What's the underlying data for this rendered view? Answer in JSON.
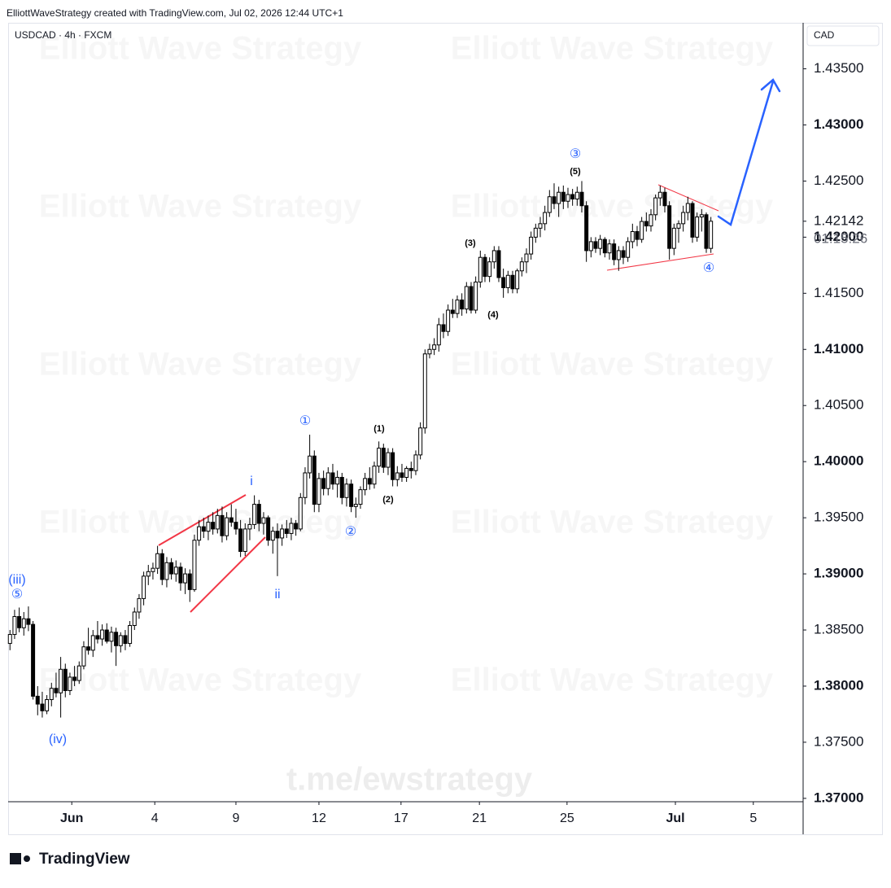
{
  "header": "ElliottWaveStrategy created with TradingView.com, Jul 02, 2026 12:44 UTC+1",
  "symbol": "USDCAD · 4h · FXCM",
  "currency": "CAD",
  "watermark": "Elliott Wave Strategy",
  "link": "t.me/ewstrategy",
  "brand": "TradingView",
  "chart_data": {
    "type": "candlestick",
    "up_color": "#ffffff",
    "down_color": "#000000",
    "wick_color": "#000000",
    "xlim": [
      -0.4,
      172
    ],
    "ylim": [
      1.3697,
      1.4391
    ],
    "xticks": [
      {
        "value": 13.4,
        "label": "Jun"
      },
      {
        "value": 31.4,
        "label": "4"
      },
      {
        "value": 49,
        "label": "9"
      },
      {
        "value": 67,
        "label": "12"
      },
      {
        "value": 84.8,
        "label": "17"
      },
      {
        "value": 101.8,
        "label": "21"
      },
      {
        "value": 120.8,
        "label": "25"
      },
      {
        "value": 144.3,
        "label": "Jul"
      },
      {
        "value": 161.2,
        "label": "5"
      }
    ],
    "yticks": [
      {
        "value": 1.37,
        "label": "1.37000"
      },
      {
        "value": 1.375,
        "label": "1.37500"
      },
      {
        "value": 1.38,
        "label": "1.38000"
      },
      {
        "value": 1.385,
        "label": "1.38500"
      },
      {
        "value": 1.39,
        "label": "1.39000"
      },
      {
        "value": 1.395,
        "label": "1.39500"
      },
      {
        "value": 1.4,
        "label": "1.40000"
      },
      {
        "value": 1.405,
        "label": "1.40500"
      },
      {
        "value": 1.41,
        "label": "1.41000"
      },
      {
        "value": 1.415,
        "label": "1.41500"
      },
      {
        "value": 1.42,
        "label": "1.42000"
      },
      {
        "value": 1.425,
        "label": "1.42500"
      },
      {
        "value": 1.43,
        "label": "1.43000"
      },
      {
        "value": 1.435,
        "label": "1.43500"
      }
    ],
    "last_price": 1.42142,
    "countdown": "01:15:26",
    "annotations": [
      {
        "text": "(iii)",
        "color": "#2962ff"
      },
      {
        "text": "⑤",
        "color": "#2962ff"
      },
      {
        "text": "(iv)",
        "color": "#2962ff"
      },
      {
        "text": "i",
        "color": "#2962ff"
      },
      {
        "text": "ii",
        "color": "#2962ff"
      },
      {
        "text": "①",
        "color": "#2962ff"
      },
      {
        "text": "②",
        "color": "#2962ff"
      },
      {
        "text": "(1)",
        "color": "#000000"
      },
      {
        "text": "(2)",
        "color": "#000000"
      },
      {
        "text": "(3)",
        "color": "#000000"
      },
      {
        "text": "(4)",
        "color": "#000000"
      },
      {
        "text": "③",
        "color": "#2962ff"
      },
      {
        "text": "(5)",
        "color": "#000000"
      },
      {
        "text": "④",
        "color": "#2962ff"
      }
    ],
    "candles": [
      [
        1.3838,
        1.385,
        1.3832,
        1.3846
      ],
      [
        1.3846,
        1.3868,
        1.3842,
        1.3862
      ],
      [
        1.3862,
        1.387,
        1.3848,
        1.3852
      ],
      [
        1.3852,
        1.3866,
        1.3845,
        1.386
      ],
      [
        1.386,
        1.3871,
        1.3849,
        1.3855
      ],
      [
        1.3855,
        1.3858,
        1.3788,
        1.3791
      ],
      [
        1.3791,
        1.38,
        1.3774,
        1.3784
      ],
      [
        1.3784,
        1.3795,
        1.3772,
        1.3778
      ],
      [
        1.3778,
        1.3792,
        1.3775,
        1.3788
      ],
      [
        1.3788,
        1.3803,
        1.3782,
        1.3798
      ],
      [
        1.3798,
        1.3812,
        1.379,
        1.3794
      ],
      [
        1.3794,
        1.3826,
        1.3772,
        1.3815
      ],
      [
        1.3815,
        1.382,
        1.379,
        1.3796
      ],
      [
        1.3796,
        1.3812,
        1.3792,
        1.3808
      ],
      [
        1.3808,
        1.3818,
        1.38,
        1.3805
      ],
      [
        1.3805,
        1.3822,
        1.3802,
        1.3818
      ],
      [
        1.3818,
        1.384,
        1.3815,
        1.3835
      ],
      [
        1.3835,
        1.3852,
        1.3828,
        1.3832
      ],
      [
        1.3832,
        1.385,
        1.3826,
        1.3845
      ],
      [
        1.3845,
        1.3858,
        1.3838,
        1.3842
      ],
      [
        1.3842,
        1.3855,
        1.3836,
        1.385
      ],
      [
        1.385,
        1.3856,
        1.3838,
        1.384
      ],
      [
        1.384,
        1.3853,
        1.383,
        1.3848
      ],
      [
        1.3848,
        1.3852,
        1.3818,
        1.3836
      ],
      [
        1.3836,
        1.3848,
        1.383,
        1.3845
      ],
      [
        1.3845,
        1.385,
        1.3832,
        1.3838
      ],
      [
        1.3838,
        1.3858,
        1.3835,
        1.3854
      ],
      [
        1.3854,
        1.387,
        1.385,
        1.3866
      ],
      [
        1.3866,
        1.3882,
        1.386,
        1.3878
      ],
      [
        1.3878,
        1.3902,
        1.3872,
        1.3898
      ],
      [
        1.3898,
        1.3908,
        1.389,
        1.3902
      ],
      [
        1.3902,
        1.391,
        1.3895,
        1.3905
      ],
      [
        1.3905,
        1.3925,
        1.39,
        1.3918
      ],
      [
        1.3918,
        1.3922,
        1.389,
        1.3895
      ],
      [
        1.3895,
        1.3915,
        1.3888,
        1.391
      ],
      [
        1.391,
        1.3914,
        1.3895,
        1.39
      ],
      [
        1.39,
        1.3912,
        1.3893,
        1.3906
      ],
      [
        1.3906,
        1.391,
        1.3885,
        1.3892
      ],
      [
        1.3892,
        1.3905,
        1.3882,
        1.39
      ],
      [
        1.39,
        1.3904,
        1.3875,
        1.3886
      ],
      [
        1.3886,
        1.3935,
        1.3884,
        1.393
      ],
      [
        1.393,
        1.3948,
        1.3925,
        1.3942
      ],
      [
        1.3942,
        1.395,
        1.3932,
        1.3938
      ],
      [
        1.3938,
        1.3952,
        1.393,
        1.3946
      ],
      [
        1.3946,
        1.3955,
        1.3935,
        1.394
      ],
      [
        1.394,
        1.3958,
        1.3936,
        1.3952
      ],
      [
        1.3952,
        1.396,
        1.3928,
        1.3934
      ],
      [
        1.3934,
        1.3955,
        1.393,
        1.395
      ],
      [
        1.395,
        1.3962,
        1.3942,
        1.3946
      ],
      [
        1.3946,
        1.3958,
        1.3935,
        1.394
      ],
      [
        1.394,
        1.3948,
        1.3915,
        1.392
      ],
      [
        1.392,
        1.3945,
        1.3916,
        1.394
      ],
      [
        1.394,
        1.395,
        1.393,
        1.3944
      ],
      [
        1.3944,
        1.397,
        1.394,
        1.3962
      ],
      [
        1.3962,
        1.3966,
        1.3938,
        1.3945
      ],
      [
        1.3945,
        1.3955,
        1.3935,
        1.395
      ],
      [
        1.395,
        1.3952,
        1.3925,
        1.393
      ],
      [
        1.393,
        1.3942,
        1.3918,
        1.3938
      ],
      [
        1.3938,
        1.3945,
        1.3898,
        1.3932
      ],
      [
        1.3932,
        1.3944,
        1.3925,
        1.394
      ],
      [
        1.394,
        1.3948,
        1.3932,
        1.3936
      ],
      [
        1.3936,
        1.395,
        1.393,
        1.3945
      ],
      [
        1.3945,
        1.3948,
        1.3934,
        1.394
      ],
      [
        1.394,
        1.3972,
        1.3938,
        1.3968
      ],
      [
        1.3968,
        1.3995,
        1.3962,
        1.399
      ],
      [
        1.399,
        1.4024,
        1.3985,
        1.4005
      ],
      [
        1.4005,
        1.401,
        1.3955,
        1.3962
      ],
      [
        1.3962,
        1.399,
        1.3955,
        1.3985
      ],
      [
        1.3985,
        1.3992,
        1.397,
        1.3976
      ],
      [
        1.3976,
        1.3995,
        1.397,
        1.399
      ],
      [
        1.399,
        1.3998,
        1.3975,
        1.398
      ],
      [
        1.398,
        1.3992,
        1.3968,
        1.3986
      ],
      [
        1.3986,
        1.399,
        1.3962,
        1.3968
      ],
      [
        1.3968,
        1.3985,
        1.396,
        1.398
      ],
      [
        1.398,
        1.3984,
        1.3955,
        1.396
      ],
      [
        1.396,
        1.3968,
        1.395,
        1.3962
      ],
      [
        1.3962,
        1.3978,
        1.3958,
        1.3975
      ],
      [
        1.3975,
        1.399,
        1.397,
        1.3985
      ],
      [
        1.3985,
        1.3995,
        1.3975,
        1.398
      ],
      [
        1.398,
        1.4,
        1.3976,
        1.3996
      ],
      [
        1.3996,
        1.4018,
        1.399,
        1.4012
      ],
      [
        1.4012,
        1.4016,
        1.399,
        1.3995
      ],
      [
        1.3995,
        1.4012,
        1.3988,
        1.4008
      ],
      [
        1.4008,
        1.4012,
        1.3978,
        1.3984
      ],
      [
        1.3984,
        1.3996,
        1.3978,
        1.399
      ],
      [
        1.399,
        1.3998,
        1.3982,
        1.3986
      ],
      [
        1.3986,
        1.3996,
        1.3982,
        1.3994
      ],
      [
        1.3994,
        1.4,
        1.3985,
        1.3992
      ],
      [
        1.3992,
        1.401,
        1.3988,
        1.4006
      ],
      [
        1.4006,
        1.4035,
        1.4002,
        1.403
      ],
      [
        1.403,
        1.41,
        1.4025,
        1.4096
      ],
      [
        1.4096,
        1.4105,
        1.4092,
        1.41
      ],
      [
        1.41,
        1.411,
        1.4095,
        1.4104
      ],
      [
        1.4104,
        1.4128,
        1.4098,
        1.4122
      ],
      [
        1.4122,
        1.4132,
        1.411,
        1.4116
      ],
      [
        1.4116,
        1.414,
        1.4112,
        1.4135
      ],
      [
        1.4135,
        1.4145,
        1.4128,
        1.4132
      ],
      [
        1.4132,
        1.4148,
        1.4128,
        1.4144
      ],
      [
        1.4144,
        1.415,
        1.413,
        1.4136
      ],
      [
        1.4136,
        1.416,
        1.4132,
        1.4156
      ],
      [
        1.4156,
        1.416,
        1.4132,
        1.4135
      ],
      [
        1.4135,
        1.4165,
        1.4132,
        1.416
      ],
      [
        1.416,
        1.4188,
        1.4155,
        1.4182
      ],
      [
        1.4182,
        1.4185,
        1.416,
        1.4165
      ],
      [
        1.4165,
        1.4182,
        1.416,
        1.4178
      ],
      [
        1.4178,
        1.4192,
        1.4172,
        1.4188
      ],
      [
        1.4188,
        1.4192,
        1.416,
        1.4164
      ],
      [
        1.4164,
        1.4172,
        1.4146,
        1.4155
      ],
      [
        1.4155,
        1.417,
        1.415,
        1.4166
      ],
      [
        1.4166,
        1.417,
        1.415,
        1.4154
      ],
      [
        1.4154,
        1.4172,
        1.415,
        1.417
      ],
      [
        1.417,
        1.4182,
        1.4165,
        1.4178
      ],
      [
        1.4178,
        1.419,
        1.4168,
        1.4185
      ],
      [
        1.4185,
        1.4205,
        1.418,
        1.42
      ],
      [
        1.42,
        1.4212,
        1.4195,
        1.4208
      ],
      [
        1.4208,
        1.4218,
        1.42,
        1.4212
      ],
      [
        1.4212,
        1.4228,
        1.4206,
        1.4222
      ],
      [
        1.4222,
        1.4242,
        1.4218,
        1.4236
      ],
      [
        1.4236,
        1.4248,
        1.4225,
        1.423
      ],
      [
        1.423,
        1.4245,
        1.4218,
        1.424
      ],
      [
        1.424,
        1.4246,
        1.4225,
        1.4232
      ],
      [
        1.4232,
        1.4244,
        1.4226,
        1.4238
      ],
      [
        1.4238,
        1.4243,
        1.4228,
        1.4234
      ],
      [
        1.4234,
        1.4245,
        1.4228,
        1.424
      ],
      [
        1.424,
        1.425,
        1.4222,
        1.4228
      ],
      [
        1.4228,
        1.4232,
        1.4178,
        1.4188
      ],
      [
        1.4188,
        1.42,
        1.4182,
        1.4196
      ],
      [
        1.4196,
        1.42,
        1.4186,
        1.419
      ],
      [
        1.419,
        1.4202,
        1.4184,
        1.4198
      ],
      [
        1.4198,
        1.42,
        1.4182,
        1.4186
      ],
      [
        1.4186,
        1.4198,
        1.418,
        1.4194
      ],
      [
        1.4194,
        1.4198,
        1.4175,
        1.418
      ],
      [
        1.418,
        1.4192,
        1.417,
        1.4188
      ],
      [
        1.4188,
        1.4192,
        1.4176,
        1.4182
      ],
      [
        1.4182,
        1.42,
        1.4178,
        1.4196
      ],
      [
        1.4196,
        1.4212,
        1.419,
        1.4205
      ],
      [
        1.4205,
        1.421,
        1.4192,
        1.4198
      ],
      [
        1.4198,
        1.4218,
        1.4195,
        1.4214
      ],
      [
        1.4214,
        1.4222,
        1.4205,
        1.421
      ],
      [
        1.421,
        1.4225,
        1.4205,
        1.422
      ],
      [
        1.422,
        1.4238,
        1.4215,
        1.4235
      ],
      [
        1.4235,
        1.4246,
        1.4228,
        1.424
      ],
      [
        1.424,
        1.4244,
        1.4222,
        1.4228
      ],
      [
        1.4228,
        1.4232,
        1.418,
        1.419
      ],
      [
        1.419,
        1.4212,
        1.4184,
        1.4208
      ],
      [
        1.4208,
        1.4215,
        1.4195,
        1.4212
      ],
      [
        1.4212,
        1.4228,
        1.4205,
        1.4222
      ],
      [
        1.4222,
        1.4236,
        1.4215,
        1.423
      ],
      [
        1.423,
        1.4232,
        1.4195,
        1.42
      ],
      [
        1.42,
        1.4222,
        1.4196,
        1.4218
      ],
      [
        1.4218,
        1.4225,
        1.4205,
        1.422
      ],
      [
        1.422,
        1.4222,
        1.4186,
        1.419
      ],
      [
        1.419,
        1.4218,
        1.4186,
        1.42142
      ]
    ]
  }
}
